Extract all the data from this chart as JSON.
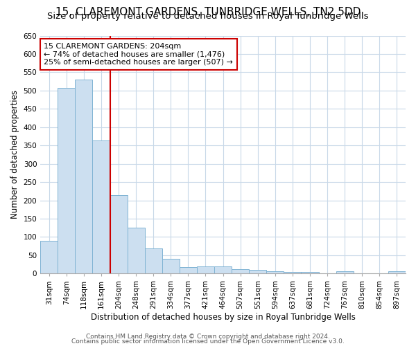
{
  "title1": "15, CLAREMONT GARDENS, TUNBRIDGE WELLS, TN2 5DD",
  "title2": "Size of property relative to detached houses in Royal Tunbridge Wells",
  "xlabel": "Distribution of detached houses by size in Royal Tunbridge Wells",
  "ylabel": "Number of detached properties",
  "categories": [
    "31sqm",
    "74sqm",
    "118sqm",
    "161sqm",
    "204sqm",
    "248sqm",
    "291sqm",
    "334sqm",
    "377sqm",
    "421sqm",
    "464sqm",
    "507sqm",
    "551sqm",
    "594sqm",
    "637sqm",
    "681sqm",
    "724sqm",
    "767sqm",
    "810sqm",
    "854sqm",
    "897sqm"
  ],
  "values": [
    90,
    507,
    530,
    363,
    215,
    125,
    68,
    41,
    18,
    20,
    20,
    11,
    10,
    6,
    5,
    5,
    1,
    6,
    1,
    1,
    6
  ],
  "bar_color": "#ccdff0",
  "bar_edge_color": "#7fb3d3",
  "marker_line_color": "#cc0000",
  "marker_index": 4,
  "annotation_box_edge_color": "#cc0000",
  "annotation_text_line1": "15 CLAREMONT GARDENS: 204sqm",
  "annotation_text_line2": "← 74% of detached houses are smaller (1,476)",
  "annotation_text_line3": "25% of semi-detached houses are larger (507) →",
  "footer1": "Contains HM Land Registry data © Crown copyright and database right 2024.",
  "footer2": "Contains public sector information licensed under the Open Government Licence v3.0.",
  "ylim": [
    0,
    650
  ],
  "yticks": [
    0,
    50,
    100,
    150,
    200,
    250,
    300,
    350,
    400,
    450,
    500,
    550,
    600,
    650
  ],
  "bg_color": "#ffffff",
  "plot_bg_color": "#ffffff",
  "title1_fontsize": 11,
  "title2_fontsize": 9.5,
  "tick_fontsize": 7.5,
  "label_fontsize": 8.5,
  "annotation_fontsize": 8,
  "footer_fontsize": 6.5
}
